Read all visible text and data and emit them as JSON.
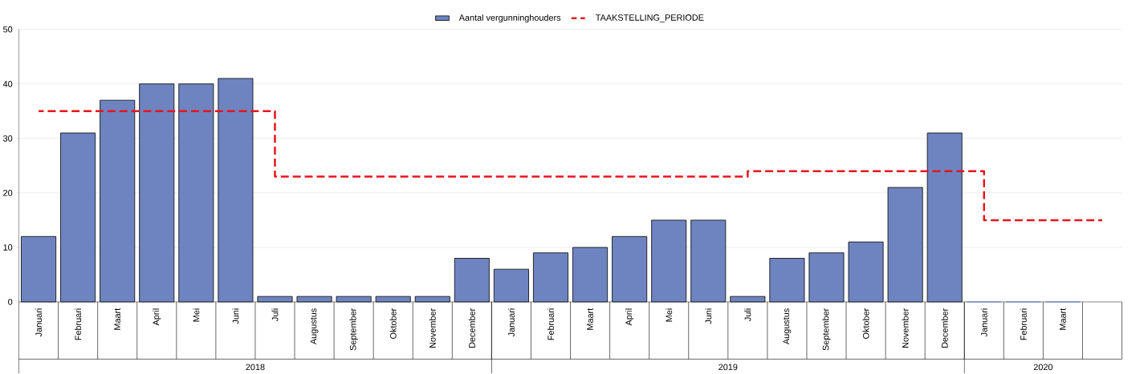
{
  "chart_data": {
    "type": "bar",
    "categories": [
      "Januari",
      "Februari",
      "Maart",
      "April",
      "Mei",
      "Juni",
      "Juli",
      "Augustus",
      "September",
      "Oktober",
      "November",
      "December",
      "Januari",
      "Februari",
      "Maart",
      "April",
      "Mei",
      "Juni",
      "Juli",
      "Augustus",
      "September",
      "Oktober",
      "November",
      "December",
      "Januari",
      "Februari",
      "Maart",
      null
    ],
    "series": [
      {
        "name": "Aantal vergunninghouders",
        "color": "#6e84c0",
        "values": [
          12,
          31,
          37,
          40,
          40,
          41,
          1,
          1,
          1,
          1,
          1,
          8,
          6,
          9,
          10,
          12,
          15,
          15,
          1,
          8,
          9,
          11,
          21,
          31,
          0,
          0,
          0,
          null
        ]
      },
      {
        "name": "TAAKSTELLING_PERIODE",
        "type": "step",
        "color": "#e8141c",
        "line_style": "dashed",
        "values": [
          35,
          35,
          35,
          35,
          35,
          35,
          23,
          23,
          23,
          23,
          23,
          23,
          23,
          23,
          23,
          23,
          23,
          23,
          24,
          24,
          24,
          24,
          24,
          24,
          15,
          15,
          15,
          15
        ]
      }
    ],
    "ylim": [
      0,
      50
    ],
    "yticks": [
      0,
      10,
      20,
      30,
      40,
      50
    ],
    "grid": "y",
    "legend": "top",
    "annotations": [
      "2018",
      "2019",
      "2020"
    ]
  }
}
